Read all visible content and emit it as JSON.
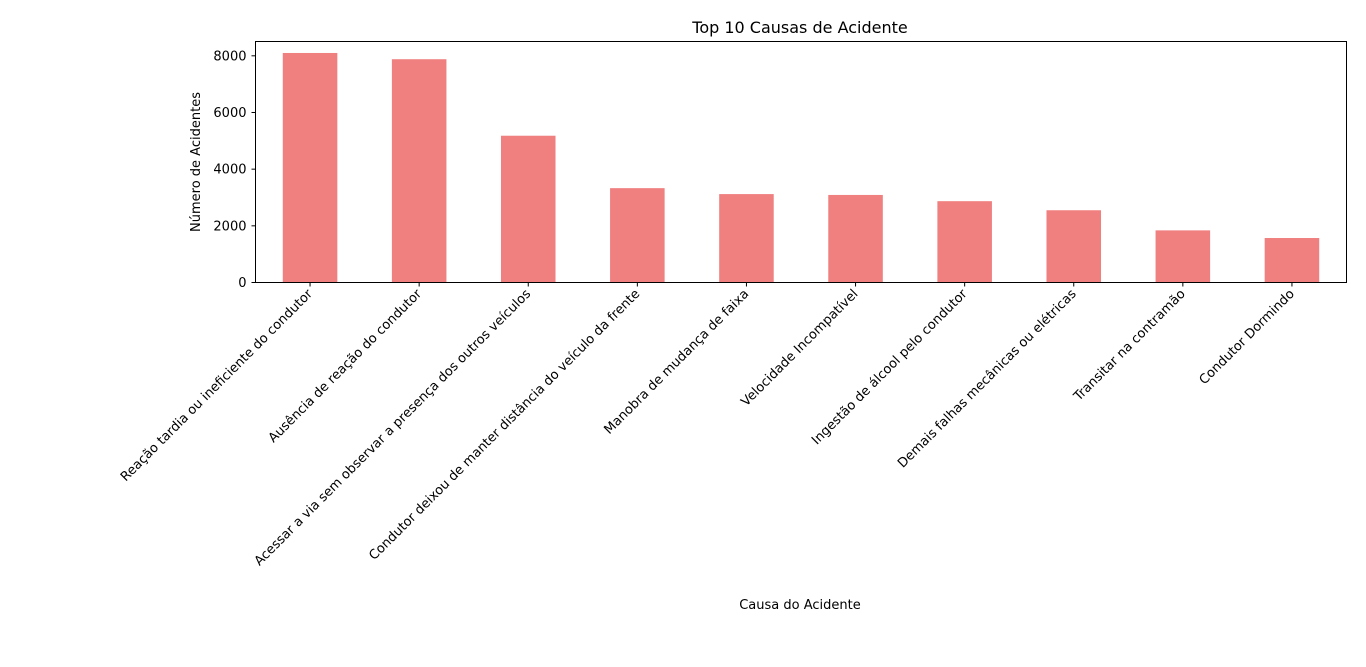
{
  "chart_data": {
    "type": "bar",
    "title": "Top 10 Causas de Acidente",
    "xlabel": "Causa do Acidente",
    "ylabel": "Número de Acidentes",
    "categories": [
      "Reação tardia ou ineficiente do condutor",
      "Ausência de reação do condutor",
      "Acessar a via sem observar a presença dos outros veículos",
      "Condutor deixou de manter distância do veículo da frente",
      "Manobra de mudança de faixa",
      "Velocidade Incompatível",
      "Ingestão de álcool pelo condutor",
      "Demais falhas mecânicas ou elétricas",
      "Transitar na contramão",
      "Condutor Dormindo"
    ],
    "values": [
      8100,
      7880,
      5180,
      3330,
      3120,
      3090,
      2870,
      2550,
      1840,
      1570
    ],
    "ylim": [
      0,
      8505
    ],
    "yticks": [
      0,
      2000,
      4000,
      6000,
      8000
    ],
    "bar_color": "#f08080",
    "grid": false,
    "legend": "none"
  }
}
